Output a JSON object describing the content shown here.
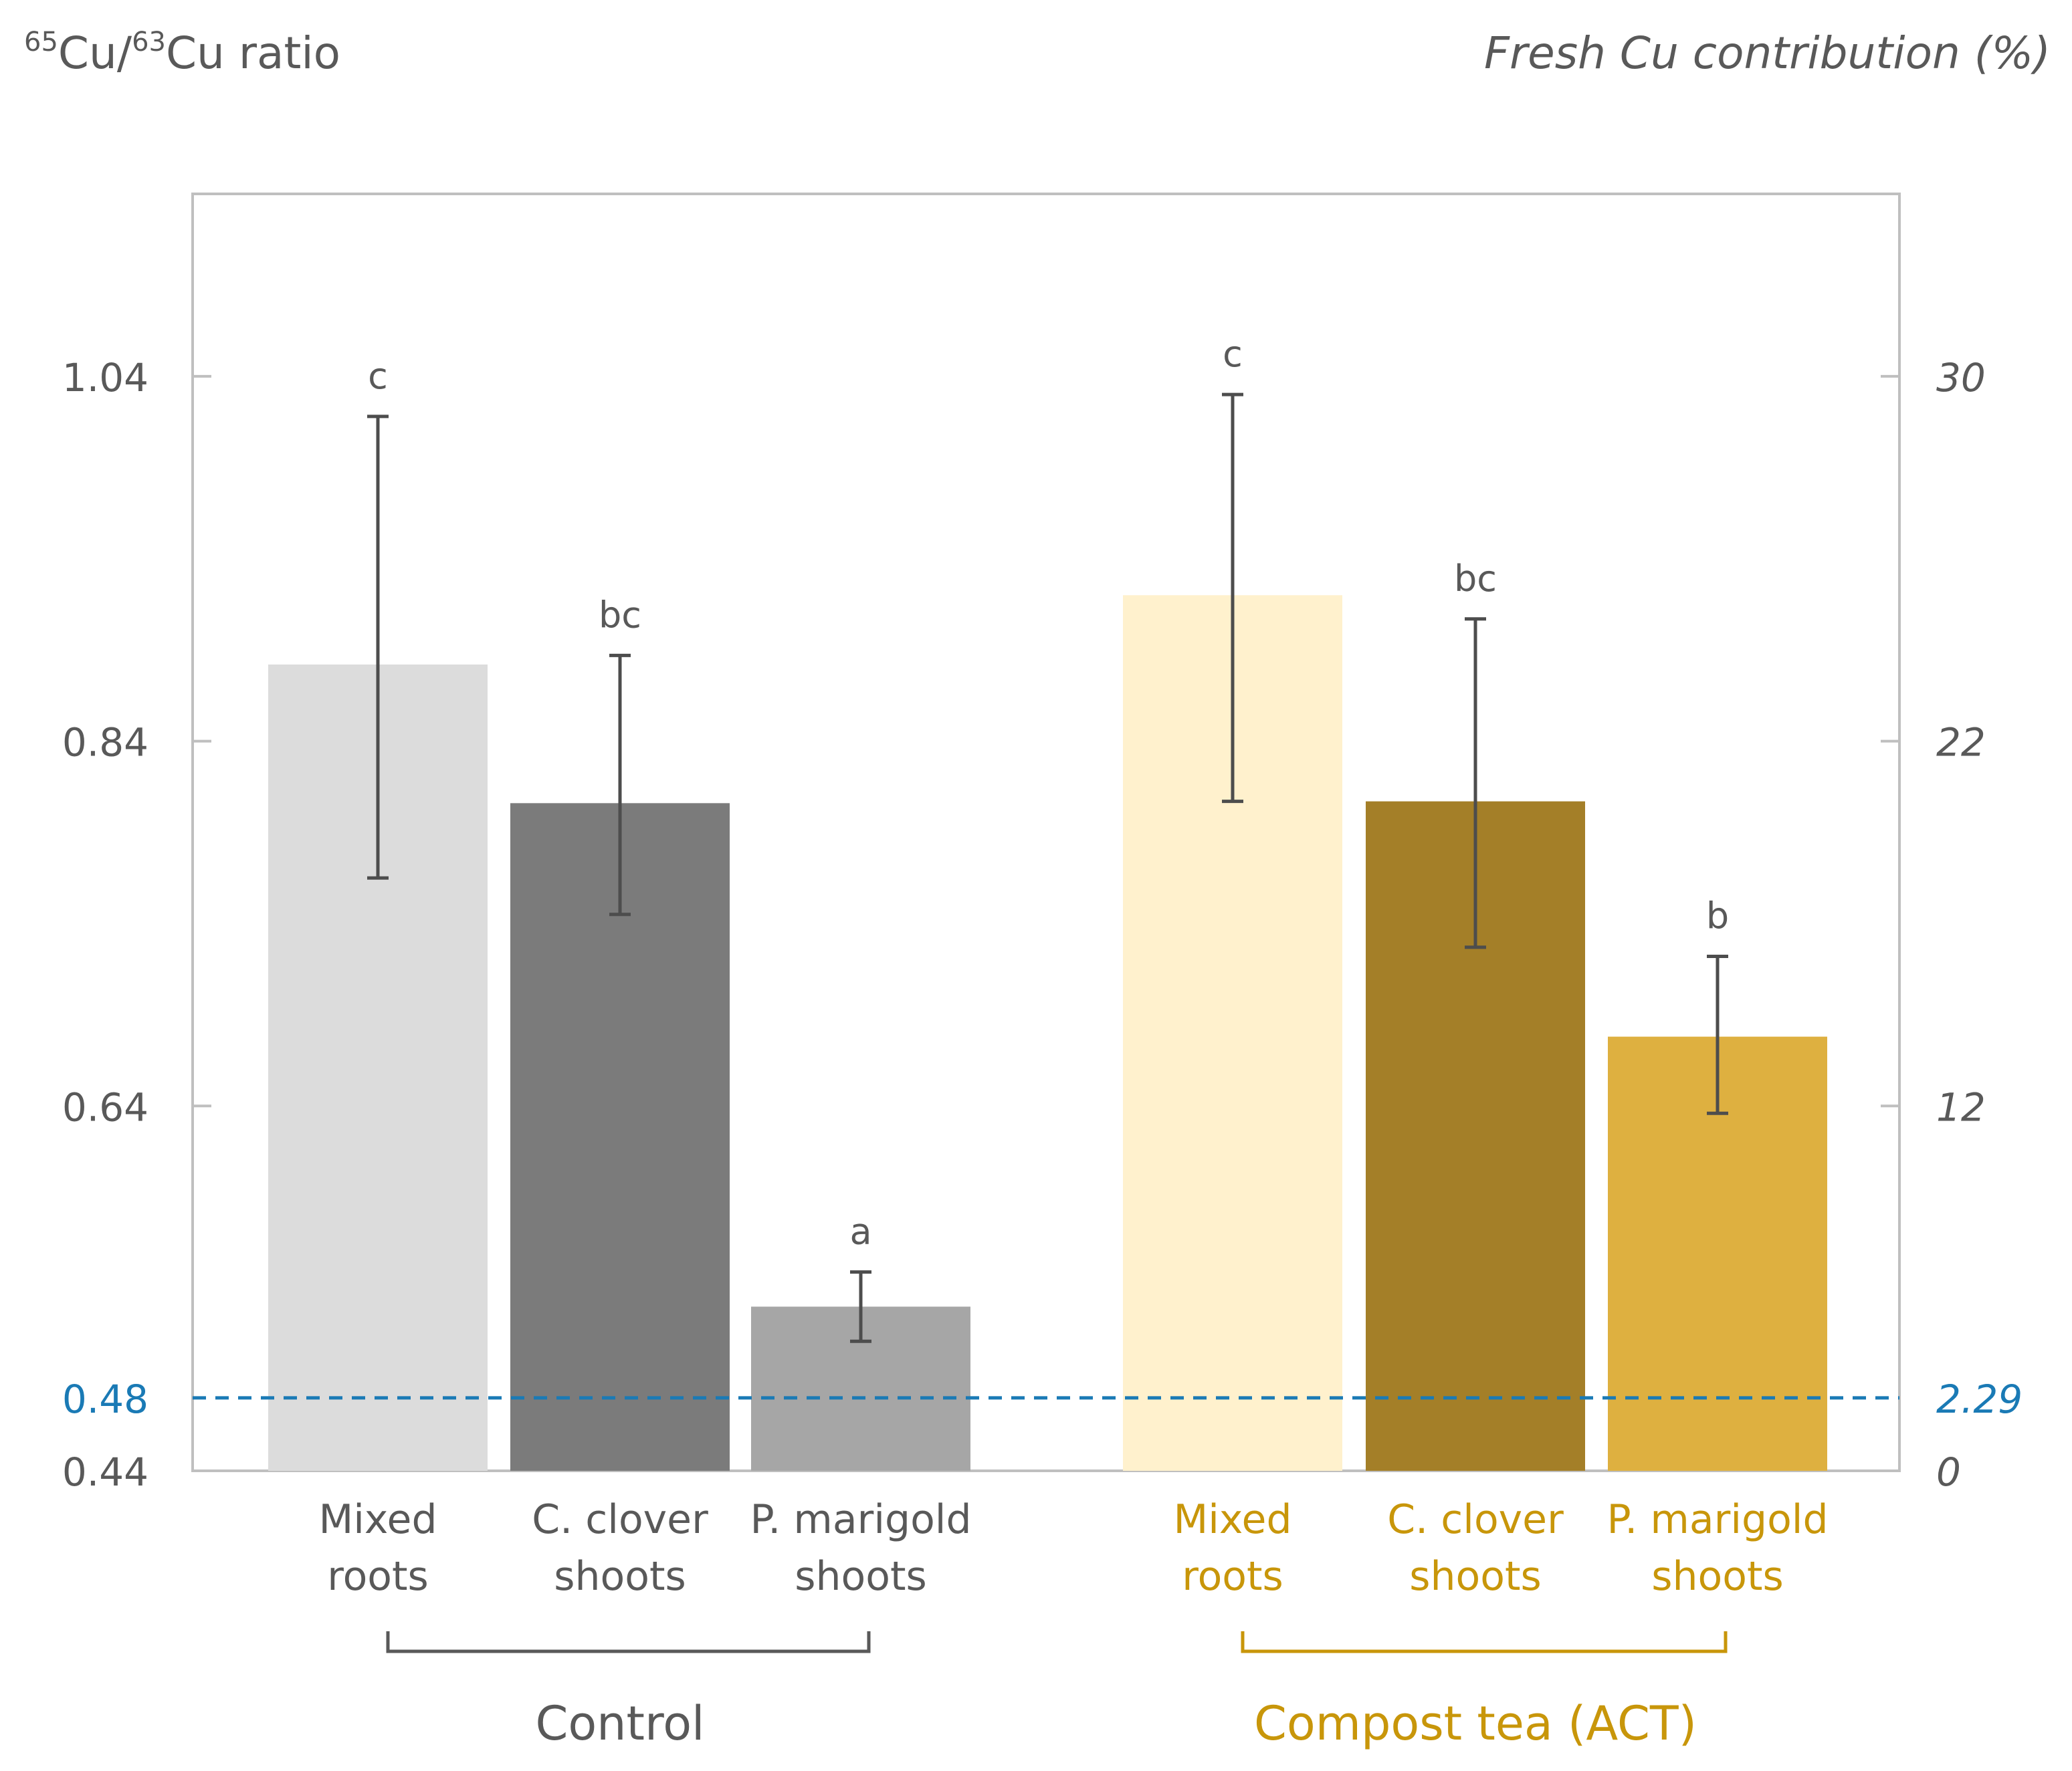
{
  "chart_data": {
    "type": "bar",
    "title": "",
    "y_left_label": {
      "sup1": "65",
      "part1": "Cu/",
      "sup2": "63",
      "part2": "Cu ratio"
    },
    "y_right_label": "Fresh Cu contribution (%)",
    "ylim": [
      0.44,
      1.14
    ],
    "left_ticks": [
      "1.04",
      "0.84",
      "0.64",
      "0.48",
      "0.44"
    ],
    "left_tick_values": [
      1.04,
      0.84,
      0.64,
      0.48,
      0.44
    ],
    "right_ticks": [
      "30",
      "22",
      "12",
      "2.29",
      "0"
    ],
    "reference_line": {
      "value": 0.48,
      "left_label": "0.48",
      "right_label": "2.29",
      "color": "#1a7ab5"
    },
    "groups": [
      {
        "name": "Control",
        "color": "#808080",
        "categories": [
          {
            "line1": "Mixed",
            "line2": "roots"
          },
          {
            "line1": "C. clover",
            "line2": "shoots"
          },
          {
            "line1": "P. marigold",
            "line2": "shoots"
          }
        ],
        "values": [
          0.882,
          0.806,
          0.53
        ],
        "err_low": [
          0.765,
          0.745,
          0.511
        ],
        "err_high": [
          1.018,
          0.887,
          0.549
        ],
        "letters": [
          "c",
          "bc",
          "a"
        ],
        "bar_colors": [
          "#dcdcdc",
          "#7b7b7b",
          "#a6a6a6"
        ]
      },
      {
        "name": "Compost tea (ACT)",
        "color": "#c8960a",
        "categories": [
          {
            "line1": "Mixed",
            "line2": "roots"
          },
          {
            "line1": "C. clover",
            "line2": "shoots"
          },
          {
            "line1": "P. marigold",
            "line2": "shoots"
          }
        ],
        "values": [
          0.92,
          0.807,
          0.678
        ],
        "err_low": [
          0.807,
          0.727,
          0.636
        ],
        "err_high": [
          1.03,
          0.907,
          0.722
        ],
        "letters": [
          "c",
          "bc",
          "b"
        ],
        "bar_colors": [
          "#fff1cd",
          "#a47f28",
          "#deb040"
        ]
      }
    ],
    "colors": {
      "axis_text": "#595959",
      "frame": "#bfbfbf",
      "error_bar": "#4d4d4d"
    }
  }
}
